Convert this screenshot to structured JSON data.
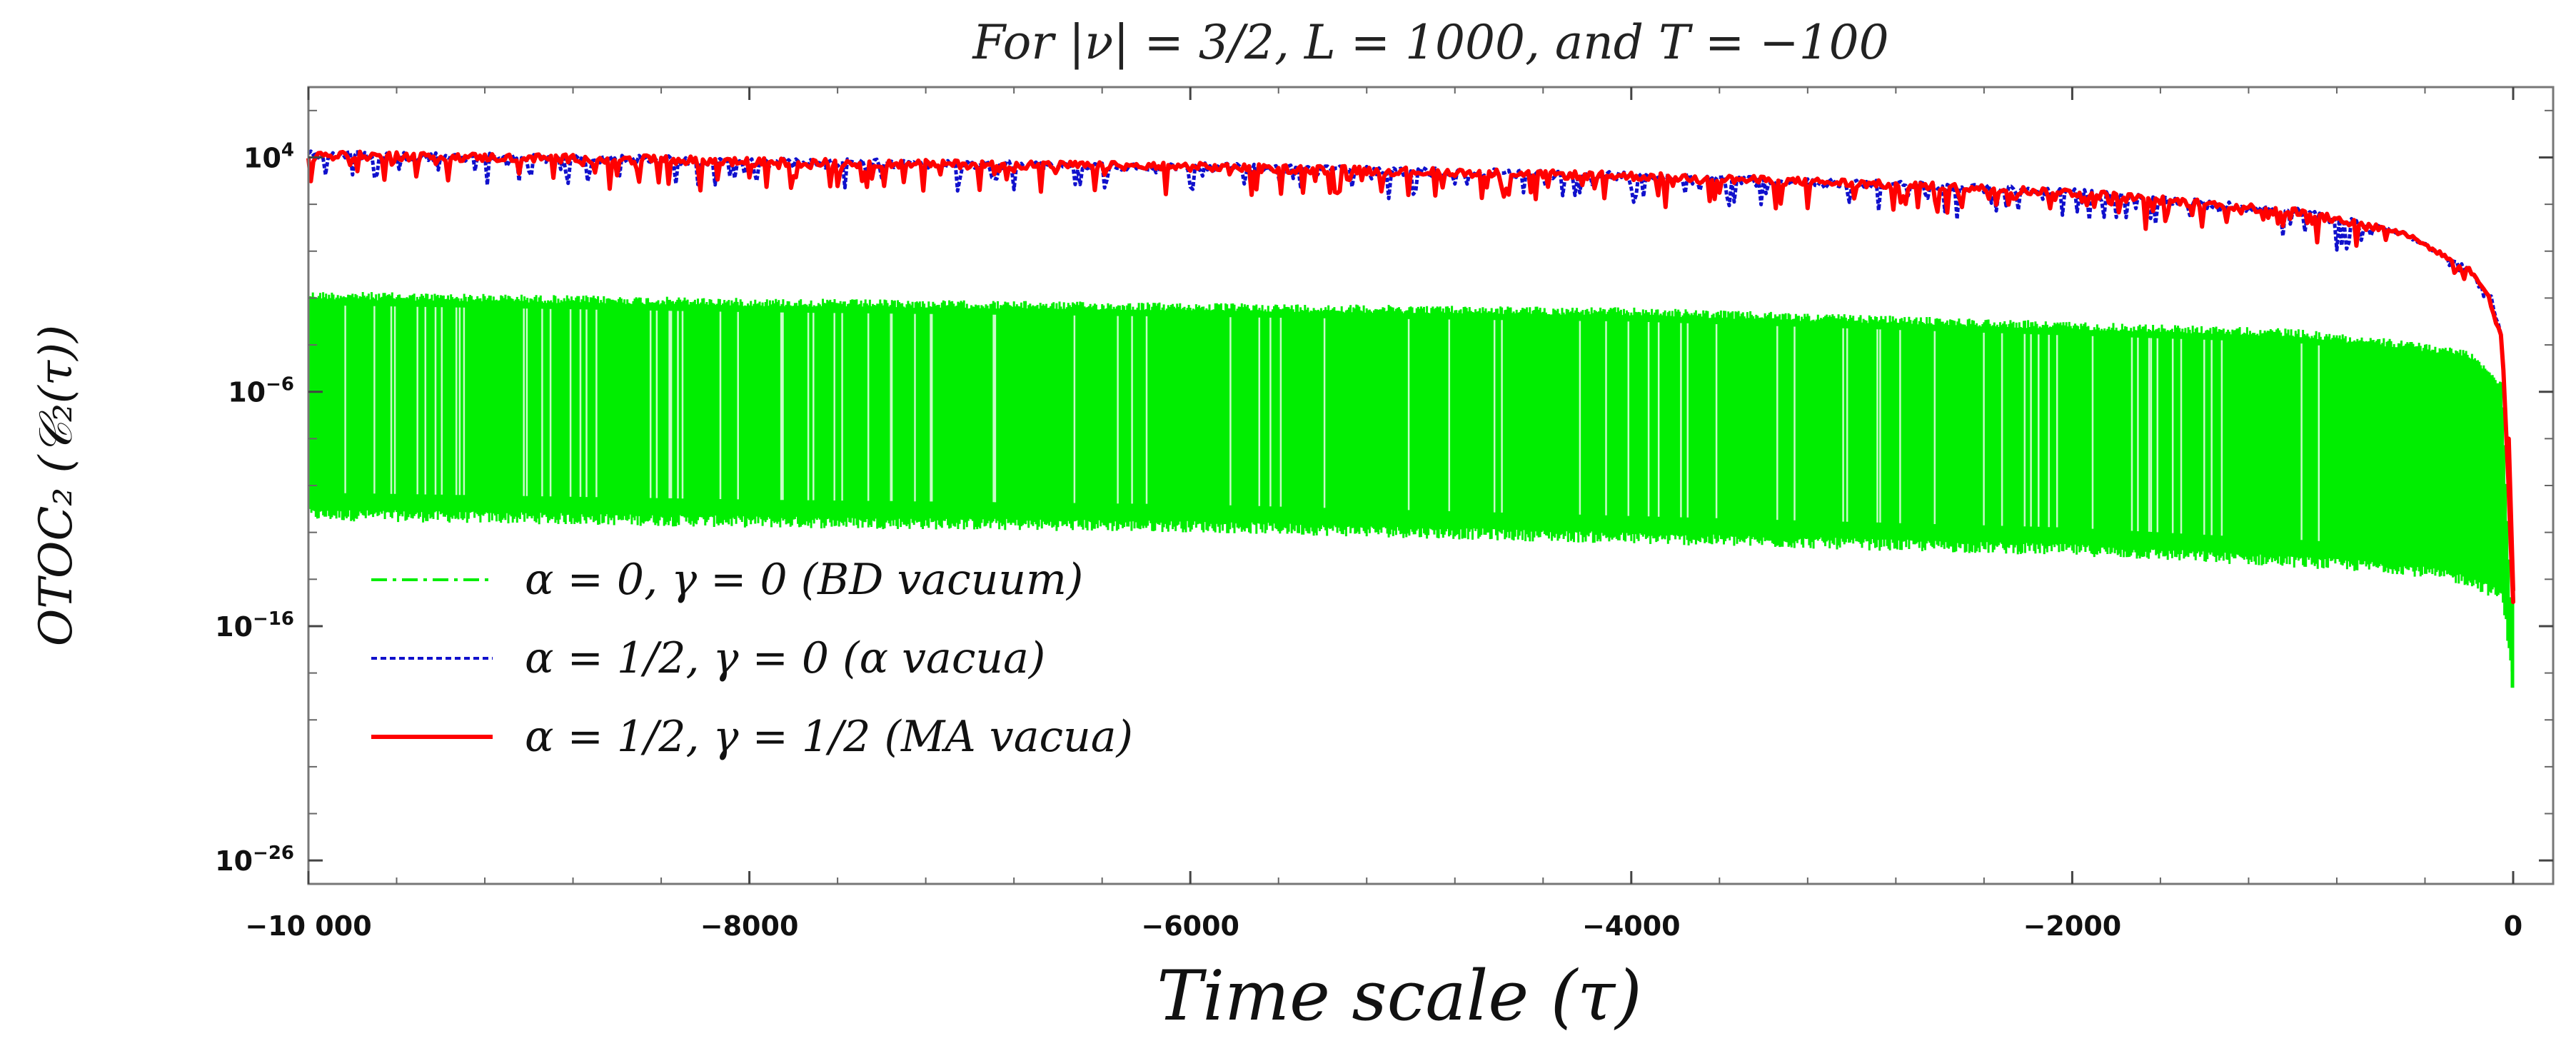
{
  "chart_data": {
    "type": "line",
    "title": "For |ν| = 3/2,  L = 1000,  and T = −100",
    "xlabel": "Time scale  (τ)",
    "ylabel": "OTOC₂ (𝒞₂(τ))",
    "xlim": [
      -10000,
      0
    ],
    "ylim_log10": [
      -27,
      7
    ],
    "yscale": "log",
    "xticks": [
      -10000,
      -8000,
      -6000,
      -4000,
      -2000,
      0
    ],
    "xtick_labels": [
      "−10 000",
      "−8000",
      "−6000",
      "−4000",
      "−2000",
      "0"
    ],
    "yticks_exp": [
      4,
      -6,
      -16,
      -26
    ],
    "ytick_mantissa": "10",
    "legend_position": "lower-left",
    "series": [
      {
        "name": "α = 0, γ = 0 (BD vacuum)",
        "color": "#00ee00",
        "style": "dashdot",
        "band": true,
        "x": [
          -10000,
          -8000,
          -6000,
          -4000,
          -2000,
          -1000,
          -500,
          -200,
          -50,
          0
        ],
        "upper_log10": [
          -1.7,
          -2.0,
          -2.2,
          -2.4,
          -3.0,
          -3.3,
          -3.8,
          -4.2,
          -5.5,
          -18.0
        ],
        "lower_log10": [
          -11.5,
          -11.8,
          -12.0,
          -12.5,
          -13.0,
          -13.5,
          -13.8,
          -14.3,
          -15.0,
          -18.5
        ]
      },
      {
        "name": "α = 1/2, γ = 0 (α vacua)",
        "color": "#1010cc",
        "style": "dotted",
        "x": [
          -10000,
          -8400,
          -8000,
          -6000,
          -4000,
          -3000,
          -2000,
          -1000,
          -500,
          -200,
          -100,
          -50,
          0
        ],
        "y_log10": [
          4.1,
          3.9,
          3.8,
          3.6,
          3.2,
          2.9,
          2.5,
          1.7,
          0.8,
          -0.8,
          -2.0,
          -3.8,
          -14.5
        ]
      },
      {
        "name": "α = 1/2, γ = 1/2 (MA vacua)",
        "color": "#ff0000",
        "style": "solid",
        "x": [
          -10000,
          -8400,
          -8000,
          -6000,
          -4000,
          -3000,
          -2000,
          -1000,
          -500,
          -200,
          -100,
          -50,
          0
        ],
        "y_log10": [
          4.1,
          3.9,
          3.8,
          3.6,
          3.2,
          2.9,
          2.5,
          1.7,
          0.8,
          -0.8,
          -2.0,
          -3.8,
          -14.5
        ]
      }
    ]
  }
}
